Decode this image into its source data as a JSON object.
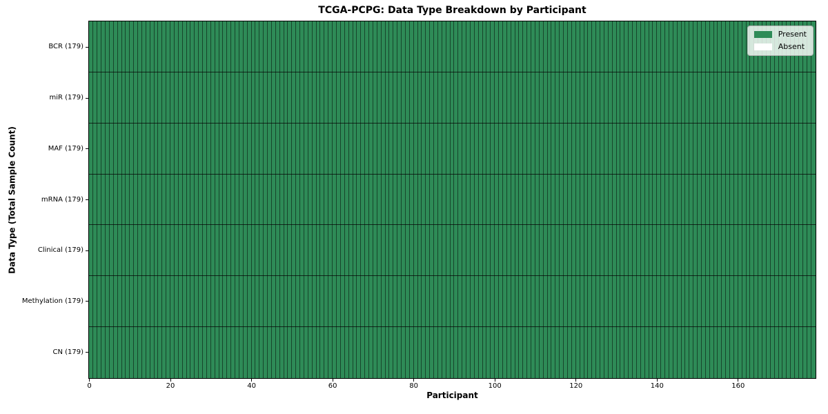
{
  "figure": {
    "background": "#ffffff"
  },
  "chart_data": {
    "type": "heatmap",
    "title": "TCGA-PCPG: Data Type Breakdown by Participant",
    "xlabel": "Participant",
    "ylabel": "Data Type (Total Sample Count)",
    "n_participants": 179,
    "x_range": [
      0,
      179
    ],
    "x_ticks": [
      0,
      20,
      40,
      60,
      80,
      100,
      120,
      140,
      160
    ],
    "rows": [
      {
        "label": "BCR (179)",
        "data_type": "BCR",
        "total_samples": 179,
        "present": 179,
        "absent": 0
      },
      {
        "label": "miR (179)",
        "data_type": "miR",
        "total_samples": 179,
        "present": 179,
        "absent": 0
      },
      {
        "label": "MAF (179)",
        "data_type": "MAF",
        "total_samples": 179,
        "present": 179,
        "absent": 0
      },
      {
        "label": "mRNA (179)",
        "data_type": "mRNA",
        "total_samples": 179,
        "present": 179,
        "absent": 0
      },
      {
        "label": "Clinical (179)",
        "data_type": "Clinical",
        "total_samples": 179,
        "present": 179,
        "absent": 0
      },
      {
        "label": "Methylation (179)",
        "data_type": "Methylation",
        "total_samples": 179,
        "present": 179,
        "absent": 0
      },
      {
        "label": "CN (179)",
        "data_type": "CN",
        "total_samples": 179,
        "present": 179,
        "absent": 0
      }
    ],
    "legend": [
      {
        "label": "Present",
        "color": "#2e8b57"
      },
      {
        "label": "Absent",
        "color": "#ffffff"
      }
    ],
    "legend_position": "upper right",
    "colors": {
      "present": "#2e8b57",
      "absent": "#ffffff",
      "cell_border": "rgba(0,0,0,0.50)",
      "row_divider": "#10261a",
      "plot_border": "#000000"
    },
    "grid": "cell-borders"
  }
}
